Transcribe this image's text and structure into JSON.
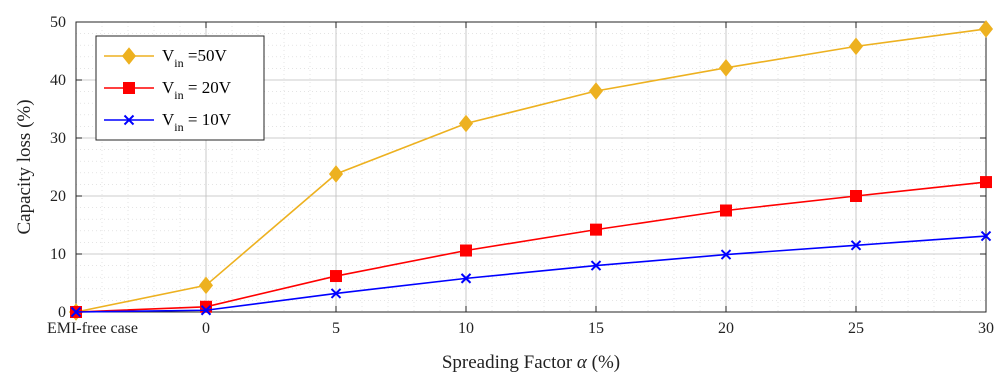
{
  "chart_data": {
    "type": "line",
    "title": "",
    "xlabel_main": "Spreading Factor ",
    "xlabel_symbol": "α",
    "xlabel_unit": " (%)",
    "ylabel": "Capacity loss (%)",
    "categories": [
      "EMI-free case",
      "0",
      "5",
      "10",
      "15",
      "20",
      "25",
      "30"
    ],
    "ylim": [
      0,
      50
    ],
    "yticks": [
      "0",
      "10",
      "20",
      "30",
      "40",
      "50"
    ],
    "grid": true,
    "legend_position": "top-left",
    "series": [
      {
        "legend_prefix": "V",
        "legend_sub": "in",
        "legend_suffix": " =50V",
        "color": "#EDB120",
        "marker": "diamond",
        "values": [
          0,
          4.6,
          23.8,
          32.5,
          38.1,
          42.1,
          45.8,
          48.8
        ]
      },
      {
        "legend_prefix": "V",
        "legend_sub": "in",
        "legend_suffix": " = 20V",
        "color": "#FF0000",
        "marker": "square",
        "values": [
          0,
          0.9,
          6.2,
          10.6,
          14.2,
          17.5,
          20.0,
          22.4
        ]
      },
      {
        "legend_prefix": "V",
        "legend_sub": "in",
        "legend_suffix": " = 10V",
        "color": "#0000FF",
        "marker": "x",
        "values": [
          0,
          0.3,
          3.2,
          5.8,
          8.0,
          9.9,
          11.5,
          13.1
        ]
      }
    ]
  }
}
